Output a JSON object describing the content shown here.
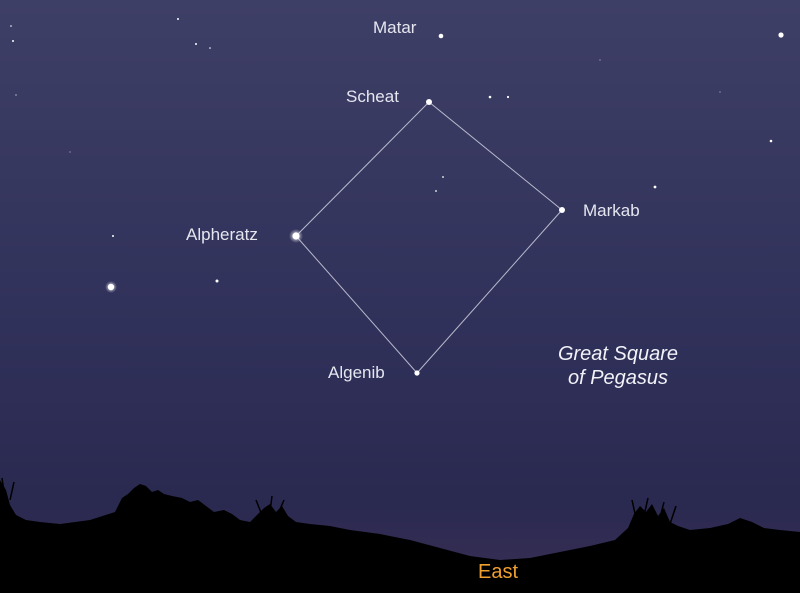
{
  "colors": {
    "sky_top": "#3e3f66",
    "sky_mid": "#2f3058",
    "sky_low": "#26264a",
    "horizon_glow": "#3a2f55",
    "ground": "#000000",
    "asterism_line": "#c8c8d8",
    "star": "#ffffff",
    "label": "#e6e6f0",
    "direction_label": "#f0a030"
  },
  "asterism": {
    "title_line1": "Great Square",
    "title_line2": "of Pegasus"
  },
  "stars": {
    "matar": "Matar",
    "scheat": "Scheat",
    "markab": "Markab",
    "alpheratz": "Alpheratz",
    "algenib": "Algenib"
  },
  "horizon": {
    "direction": "East"
  }
}
